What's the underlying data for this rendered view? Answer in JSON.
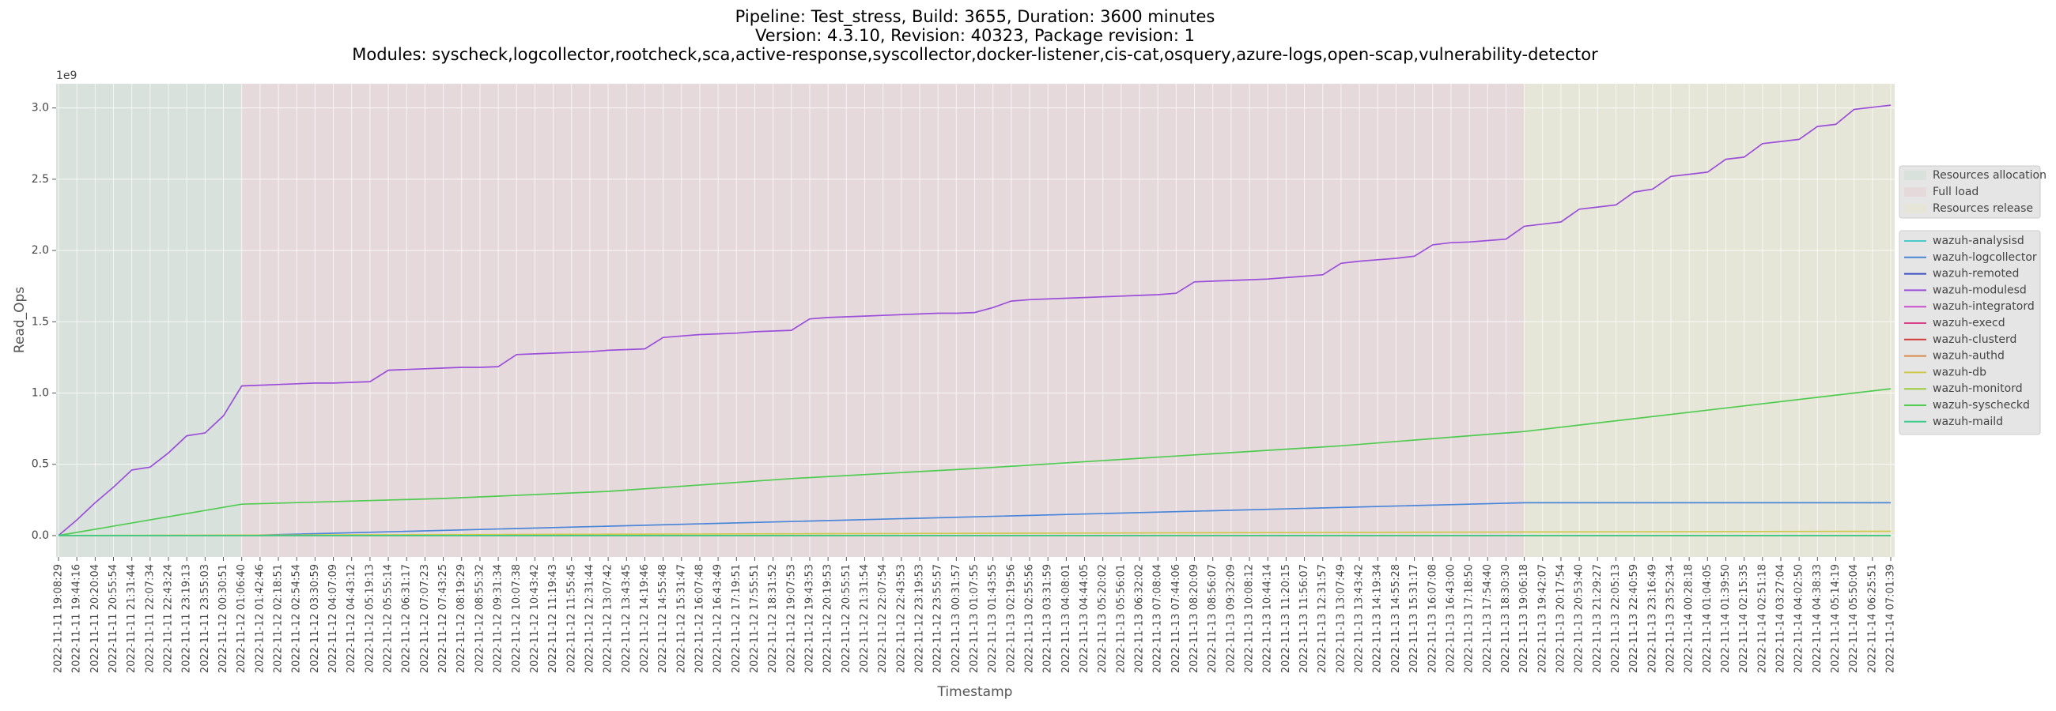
{
  "chart_data": {
    "type": "line",
    "title": [
      "Pipeline: Test_stress, Build: 3655, Duration: 3600 minutes",
      "Version: 4.3.10, Revision: 40323, Package revision: 1",
      "Modules: syscheck,logcollector,rootcheck,sca,active-response,syscollector,docker-listener,cis-cat,osquery,azure-logs,open-scap,vulnerability-detector"
    ],
    "xlabel": "Timestamp",
    "ylabel": "Read_Ops",
    "y_scale_label": "1e9",
    "ylim": [
      -0.15,
      3.17
    ],
    "yticks": [
      {
        "value": 0,
        "label": "0.0"
      },
      0.5,
      {
        "value": 1,
        "label": "1.0"
      },
      1.5,
      {
        "value": 2,
        "label": "2.0"
      },
      2.5,
      {
        "value": 3,
        "label": "3.0"
      }
    ],
    "grid": true,
    "categories": [
      "2022-11-11 19:08:29",
      "2022-11-11 19:44:16",
      "2022-11-11 20:20:04",
      "2022-11-11 20:55:54",
      "2022-11-11 21:31:44",
      "2022-11-11 22:07:34",
      "2022-11-11 22:43:24",
      "2022-11-11 23:19:13",
      "2022-11-11 23:55:03",
      "2022-11-12 00:30:51",
      "2022-11-12 01:06:40",
      "2022-11-12 01:42:46",
      "2022-11-12 02:18:51",
      "2022-11-12 02:54:54",
      "2022-11-12 03:30:59",
      "2022-11-12 04:07:09",
      "2022-11-12 04:43:12",
      "2022-11-12 05:19:13",
      "2022-11-12 05:55:14",
      "2022-11-12 06:31:17",
      "2022-11-12 07:07:23",
      "2022-11-12 07:43:25",
      "2022-11-12 08:19:29",
      "2022-11-12 08:55:32",
      "2022-11-12 09:31:34",
      "2022-11-12 10:07:38",
      "2022-11-12 10:43:42",
      "2022-11-12 11:19:43",
      "2022-11-12 11:55:45",
      "2022-11-12 12:31:44",
      "2022-11-12 13:07:42",
      "2022-11-12 13:43:45",
      "2022-11-12 14:19:46",
      "2022-11-12 14:55:48",
      "2022-11-12 15:31:47",
      "2022-11-12 16:07:48",
      "2022-11-12 16:43:49",
      "2022-11-12 17:19:51",
      "2022-11-12 17:55:51",
      "2022-11-12 18:31:52",
      "2022-11-12 19:07:53",
      "2022-11-12 19:43:53",
      "2022-11-12 20:19:53",
      "2022-11-12 20:55:51",
      "2022-11-12 21:31:54",
      "2022-11-12 22:07:54",
      "2022-11-12 22:43:53",
      "2022-11-12 23:19:53",
      "2022-11-12 23:55:57",
      "2022-11-13 00:31:57",
      "2022-11-13 01:07:55",
      "2022-11-13 01:43:55",
      "2022-11-13 02:19:56",
      "2022-11-13 02:55:56",
      "2022-11-13 03:31:59",
      "2022-11-13 04:08:01",
      "2022-11-13 04:44:05",
      "2022-11-13 05:20:02",
      "2022-11-13 05:56:01",
      "2022-11-13 06:32:02",
      "2022-11-13 07:08:04",
      "2022-11-13 07:44:06",
      "2022-11-13 08:20:09",
      "2022-11-13 08:56:07",
      "2022-11-13 09:32:09",
      "2022-11-13 10:08:12",
      "2022-11-13 10:44:14",
      "2022-11-13 11:20:15",
      "2022-11-13 11:56:07",
      "2022-11-13 12:31:57",
      "2022-11-13 13:07:49",
      "2022-11-13 13:43:42",
      "2022-11-13 14:19:34",
      "2022-11-13 14:55:28",
      "2022-11-13 15:31:17",
      "2022-11-13 16:07:08",
      "2022-11-13 16:43:00",
      "2022-11-13 17:18:50",
      "2022-11-13 17:54:40",
      "2022-11-13 18:30:30",
      "2022-11-13 19:06:18",
      "2022-11-13 19:42:07",
      "2022-11-13 20:17:54",
      "2022-11-13 20:53:40",
      "2022-11-13 21:29:27",
      "2022-11-13 22:05:13",
      "2022-11-13 22:40:59",
      "2022-11-13 23:16:49",
      "2022-11-13 23:52:34",
      "2022-11-14 00:28:18",
      "2022-11-14 01:04:05",
      "2022-11-14 01:39:50",
      "2022-11-14 02:15:35",
      "2022-11-14 02:51:18",
      "2022-11-14 03:27:04",
      "2022-11-14 04:02:50",
      "2022-11-14 04:38:33",
      "2022-11-14 05:14:19",
      "2022-11-14 05:50:04",
      "2022-11-14 06:25:51",
      "2022-11-14 07:01:39"
    ],
    "phases": [
      {
        "name": "Resources allocation",
        "color": "#d8e1dc",
        "start": "2022-11-11 19:08:29",
        "end": "2022-11-12 01:06:40"
      },
      {
        "name": "Full load",
        "color": "#e6d9dc",
        "start": "2022-11-12 01:06:40",
        "end": "2022-11-13 19:06:18"
      },
      {
        "name": "Resources release",
        "color": "#e6e6d8",
        "start": "2022-11-13 19:06:18",
        "end": "2022-11-14 07:01:39"
      }
    ],
    "series": [
      {
        "name": "wazuh-analysisd",
        "color": "#4cc9c9",
        "x": [
          "2022-11-11 19:08:29",
          "2022-11-14 07:01:39"
        ],
        "values": [
          0,
          0
        ]
      },
      {
        "name": "wazuh-logcollector",
        "color": "#4a86d8",
        "x": [
          "2022-11-11 19:08:29",
          "2022-11-12 01:06:40",
          "2022-11-13 19:06:18",
          "2022-11-14 07:01:39"
        ],
        "values": [
          0,
          0,
          0.23,
          0.23
        ]
      },
      {
        "name": "wazuh-remoted",
        "color": "#3b4fc4",
        "x": [
          "2022-11-11 19:08:29",
          "2022-11-14 07:01:39"
        ],
        "values": [
          0,
          0
        ]
      },
      {
        "name": "wazuh-modulesd",
        "color": "#9b4fd9",
        "values": [
          0,
          0.11,
          0.23,
          0.34,
          0.46,
          0.48,
          0.58,
          0.7,
          0.72,
          0.84,
          1.05,
          1.055,
          1.06,
          1.065,
          1.07,
          1.07,
          1.075,
          1.08,
          1.16,
          1.165,
          1.17,
          1.175,
          1.18,
          1.18,
          1.185,
          1.27,
          1.275,
          1.28,
          1.285,
          1.29,
          1.3,
          1.305,
          1.31,
          1.39,
          1.4,
          1.41,
          1.415,
          1.42,
          1.43,
          1.435,
          1.44,
          1.52,
          1.53,
          1.535,
          1.54,
          1.545,
          1.55,
          1.555,
          1.56,
          1.56,
          1.565,
          1.6,
          1.645,
          1.655,
          1.66,
          1.665,
          1.67,
          1.675,
          1.68,
          1.685,
          1.69,
          1.7,
          1.78,
          1.785,
          1.79,
          1.795,
          1.8,
          1.81,
          1.82,
          1.83,
          1.91,
          1.925,
          1.935,
          1.945,
          1.96,
          2.04,
          2.055,
          2.06,
          2.07,
          2.08,
          2.17,
          2.185,
          2.2,
          2.29,
          2.305,
          2.32,
          2.41,
          2.43,
          2.52,
          2.535,
          2.55,
          2.64,
          2.655,
          2.75,
          2.765,
          2.78,
          2.87,
          2.885,
          2.99,
          3.005,
          3.02
        ]
      },
      {
        "name": "wazuh-integratord",
        "color": "#c94fd0",
        "x": [
          "2022-11-11 19:08:29",
          "2022-11-14 07:01:39"
        ],
        "values": [
          0,
          0
        ]
      },
      {
        "name": "wazuh-execd",
        "color": "#d9408a",
        "x": [
          "2022-11-11 19:08:29",
          "2022-11-14 07:01:39"
        ],
        "values": [
          0,
          0
        ]
      },
      {
        "name": "wazuh-clusterd",
        "color": "#d43c3c",
        "x": [
          "2022-11-11 19:08:29",
          "2022-11-14 07:01:39"
        ],
        "values": [
          0,
          0
        ]
      },
      {
        "name": "wazuh-authd",
        "color": "#d9894a",
        "x": [
          "2022-11-11 19:08:29",
          "2022-11-14 07:01:39"
        ],
        "values": [
          0,
          0
        ]
      },
      {
        "name": "wazuh-db",
        "color": "#cfc84a",
        "x": [
          "2022-11-11 19:08:29",
          "2022-11-12 01:06:40",
          "2022-11-13 19:06:18",
          "2022-11-14 07:01:39"
        ],
        "values": [
          0,
          0.003,
          0.025,
          0.03
        ]
      },
      {
        "name": "wazuh-monitord",
        "color": "#9ccc3c",
        "x": [
          "2022-11-11 19:08:29",
          "2022-11-14 07:01:39"
        ],
        "values": [
          0,
          0
        ]
      },
      {
        "name": "wazuh-syscheckd",
        "color": "#4fcc4f",
        "x": [
          "2022-11-11 19:08:29",
          "2022-11-12 01:06:40",
          "2022-11-12 07:43:25",
          "2022-11-12 13:07:42",
          "2022-11-12 19:07:53",
          "2022-11-13 01:07:55",
          "2022-11-13 07:08:04",
          "2022-11-13 13:07:49",
          "2022-11-13 19:06:18",
          "2022-11-14 01:04:05",
          "2022-11-14 07:01:39"
        ],
        "values": [
          0,
          0.22,
          0.26,
          0.31,
          0.4,
          0.47,
          0.55,
          0.63,
          0.73,
          0.88,
          1.03
        ]
      },
      {
        "name": "wazuh-maild",
        "color": "#3ccc8c",
        "x": [
          "2022-11-11 19:08:29",
          "2022-11-14 07:01:39"
        ],
        "values": [
          0,
          0
        ]
      }
    ]
  }
}
